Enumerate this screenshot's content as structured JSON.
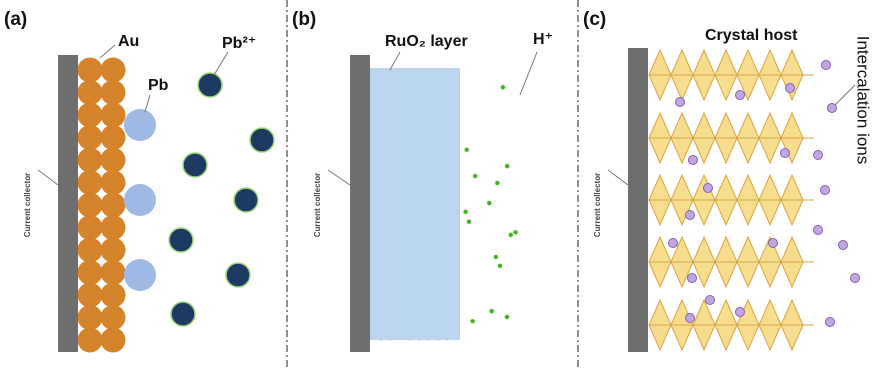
{
  "panels": [
    {
      "label": "(a)",
      "collector": "Current collector",
      "annotations": [
        "Au",
        "Pb",
        "Pb²⁺"
      ]
    },
    {
      "label": "(b)",
      "collector": "Current collector",
      "annotations": [
        "RuO₂ layer",
        "H⁺"
      ]
    },
    {
      "label": "(c)",
      "collector": "Current collector",
      "annotations": [
        "Crystal host",
        "Intercalation ions"
      ]
    }
  ]
}
